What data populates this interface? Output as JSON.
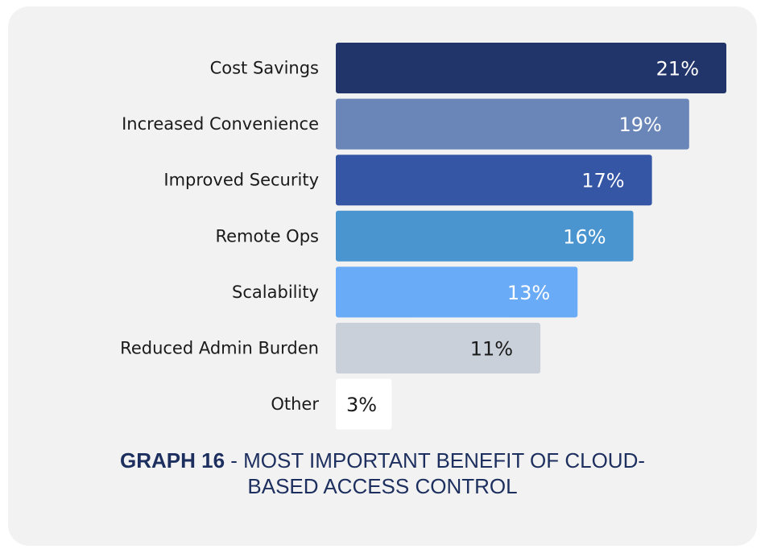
{
  "chart_data": {
    "type": "bar",
    "orientation": "horizontal",
    "categories": [
      "Cost Savings",
      "Increased Convenience",
      "Improved Security",
      "Remote Ops",
      "Scalability",
      "Reduced Admin Burden",
      "Other"
    ],
    "values": [
      21,
      19,
      17,
      16,
      13,
      11,
      3
    ],
    "value_labels": [
      "21%",
      "19%",
      "17%",
      "16%",
      "13%",
      "11%",
      "3%"
    ],
    "colors": [
      "#22356b",
      "#6a86b8",
      "#3456a5",
      "#4a95d0",
      "#6aabf7",
      "#c9d0da",
      "#ffffff"
    ],
    "label_colors": [
      "#ffffff",
      "#ffffff",
      "#ffffff",
      "#ffffff",
      "#ffffff",
      "#1a1a1a",
      "#1a1a1a"
    ],
    "xlim": [
      0,
      21
    ],
    "grid": false
  },
  "caption": {
    "bold": "GRAPH 16",
    "rest": " - MOST IMPORTANT BENEFIT OF CLOUD-",
    "line2": "BASED ACCESS CONTROL"
  }
}
